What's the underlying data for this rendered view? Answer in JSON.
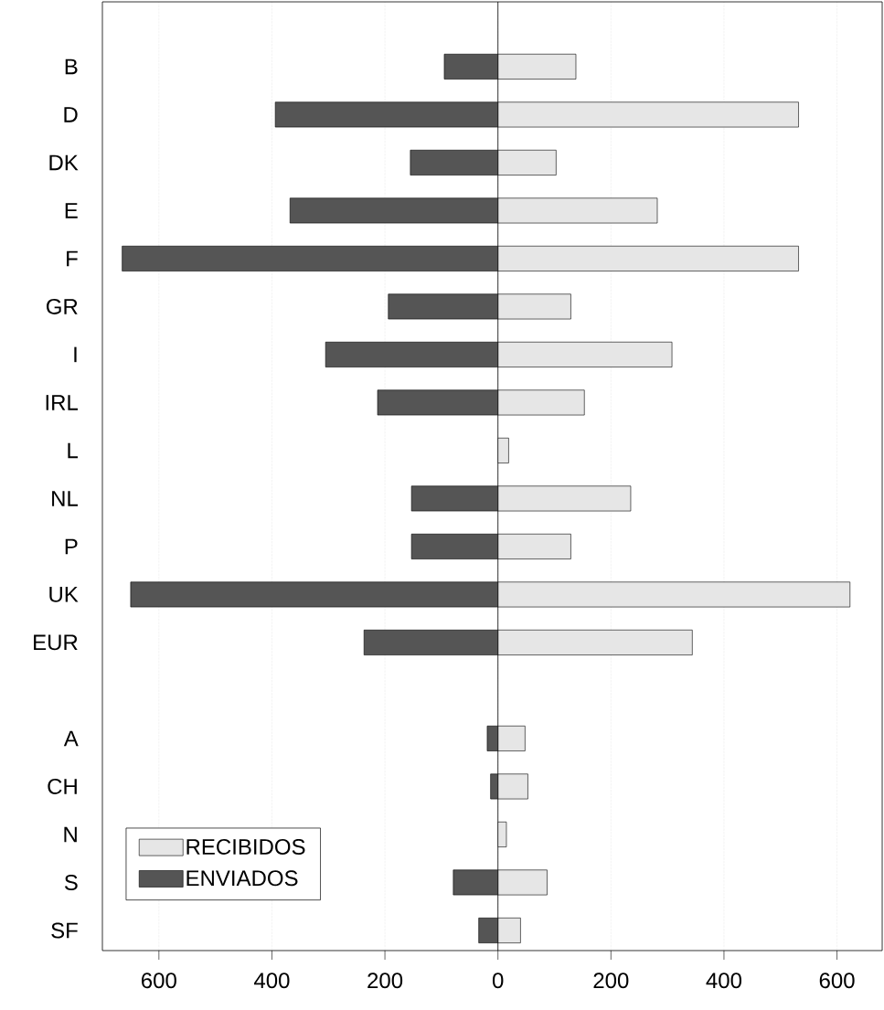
{
  "chart_data": {
    "type": "bar",
    "orientation": "horizontal",
    "categories": [
      "B",
      "D",
      "DK",
      "E",
      "F",
      "GR",
      "I",
      "IRL",
      "L",
      "NL",
      "P",
      "UK",
      "EUR",
      null,
      "A",
      "CH",
      "N",
      "S",
      "SF"
    ],
    "series": [
      {
        "name": "ENVIADOS",
        "color": "#555555",
        "values": [
          -95,
          -394,
          -155,
          -368,
          -665,
          -194,
          -305,
          -213,
          null,
          -153,
          -153,
          -650,
          -237,
          null,
          -19,
          -13,
          null,
          -79,
          -34
        ]
      },
      {
        "name": "RECIBIDOS",
        "color": "#e6e6e6",
        "values": [
          138,
          532,
          103,
          282,
          532,
          129,
          308,
          153,
          19,
          235,
          129,
          623,
          344,
          null,
          48,
          53,
          15,
          87,
          40
        ]
      }
    ],
    "xlim": [
      -700,
      680
    ],
    "xticks": [
      {
        "value": -600,
        "label": "600"
      },
      {
        "value": -400,
        "label": "400"
      },
      {
        "value": -200,
        "label": "200"
      },
      {
        "value": 0,
        "label": "0"
      },
      {
        "value": 200,
        "label": "200"
      },
      {
        "value": 400,
        "label": "400"
      },
      {
        "value": 600,
        "label": "600"
      }
    ],
    "grid": "x",
    "legend": "bottom left",
    "stacked": true
  }
}
